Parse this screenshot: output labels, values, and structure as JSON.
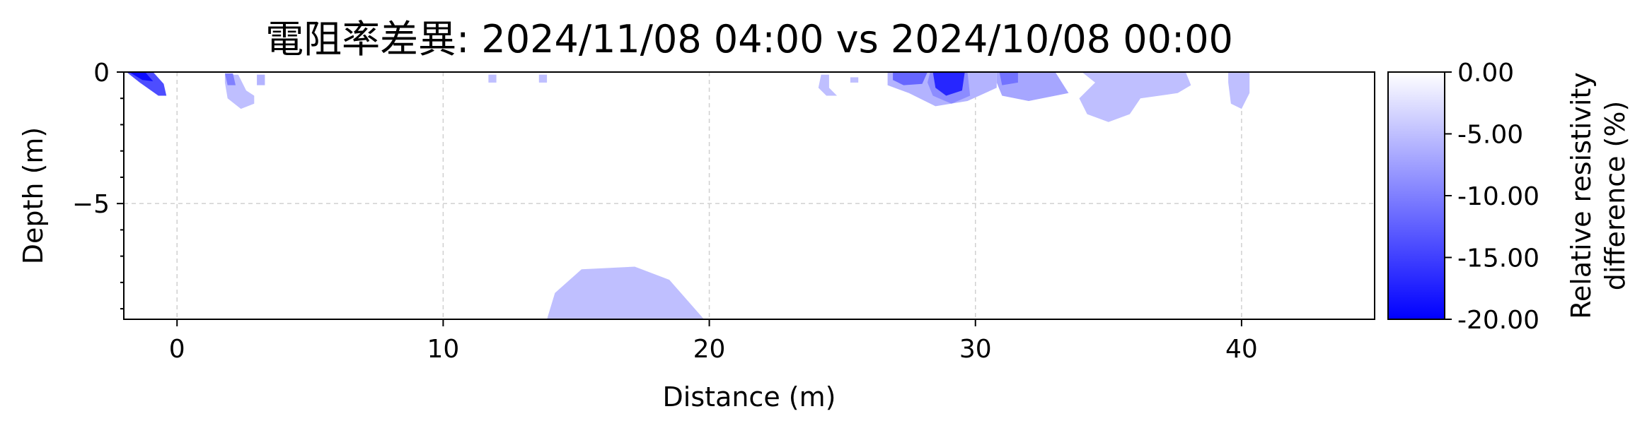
{
  "chart_data": {
    "type": "heatmap",
    "title": "電阻率差異: 2024/11/08 04:00 vs 2024/10/08 00:00",
    "xlabel": "Distance (m)",
    "ylabel": "Depth (m)",
    "xlim": [
      -2,
      45
    ],
    "ylim": [
      -9.4,
      0
    ],
    "x_ticks": [
      0,
      10,
      20,
      30,
      40
    ],
    "x_tick_labels": [
      "0",
      "10",
      "20",
      "30",
      "40"
    ],
    "y_ticks": [
      0,
      -5
    ],
    "y_tick_labels": [
      "0",
      "−5"
    ],
    "grid": true,
    "colorbar": {
      "label_lines": [
        "Relative resistivity",
        "difference (%)"
      ],
      "range": [
        -20,
        0
      ],
      "ticks": [
        0,
        -5,
        -10,
        -15,
        -20
      ],
      "tick_labels": [
        "0.00",
        "-5.00",
        "-10.00",
        "-15.00",
        "-20.00"
      ],
      "color_min": "#0000ff",
      "color_max": "#ffffff"
    },
    "anomalies": [
      {
        "value": -14,
        "polygon": [
          [
            -1.9,
            0
          ],
          [
            -0.9,
            0
          ],
          [
            -0.5,
            -0.45
          ],
          [
            -0.4,
            -0.9
          ],
          [
            -0.7,
            -0.9
          ],
          [
            -1.4,
            -0.4
          ]
        ]
      },
      {
        "value": -19,
        "polygon": [
          [
            -1.8,
            0
          ],
          [
            -1.2,
            0
          ],
          [
            -0.9,
            -0.35
          ],
          [
            -1.3,
            -0.3
          ]
        ]
      },
      {
        "value": -5,
        "polygon": [
          [
            1.8,
            -0.1
          ],
          [
            2.3,
            -0.1
          ],
          [
            2.6,
            -0.7
          ],
          [
            2.9,
            -0.9
          ],
          [
            2.9,
            -1.2
          ],
          [
            2.4,
            -1.4
          ],
          [
            1.9,
            -1.0
          ],
          [
            1.8,
            -0.4
          ]
        ]
      },
      {
        "value": -10,
        "polygon": [
          [
            1.8,
            -0.05
          ],
          [
            2.1,
            -0.05
          ],
          [
            2.2,
            -0.5
          ],
          [
            1.9,
            -0.5
          ]
        ]
      },
      {
        "value": -6,
        "polygon": [
          [
            3,
            -0.1
          ],
          [
            3.3,
            -0.1
          ],
          [
            3.3,
            -0.5
          ],
          [
            3,
            -0.5
          ]
        ]
      },
      {
        "value": -5,
        "polygon": [
          [
            11.7,
            -0.1
          ],
          [
            12.0,
            -0.1
          ],
          [
            12.0,
            -0.4
          ],
          [
            11.7,
            -0.4
          ]
        ]
      },
      {
        "value": -5,
        "polygon": [
          [
            13.6,
            -0.1
          ],
          [
            13.9,
            -0.1
          ],
          [
            13.9,
            -0.4
          ],
          [
            13.6,
            -0.4
          ]
        ]
      },
      {
        "value": -5,
        "polygon": [
          [
            13.9,
            -9.4
          ],
          [
            14.2,
            -8.4
          ],
          [
            15.2,
            -7.5
          ],
          [
            17.2,
            -7.4
          ],
          [
            18.5,
            -7.9
          ],
          [
            19.8,
            -9.4
          ]
        ]
      },
      {
        "value": -5,
        "polygon": [
          [
            24.2,
            -0.1
          ],
          [
            24.5,
            -0.1
          ],
          [
            24.5,
            -0.6
          ],
          [
            24.8,
            -0.9
          ],
          [
            24.4,
            -0.9
          ],
          [
            24.1,
            -0.6
          ]
        ]
      },
      {
        "value": -5,
        "polygon": [
          [
            25.3,
            -0.2
          ],
          [
            25.6,
            -0.2
          ],
          [
            25.6,
            -0.4
          ],
          [
            25.3,
            -0.4
          ]
        ]
      },
      {
        "value": -6,
        "polygon": [
          [
            26.7,
            0
          ],
          [
            30.8,
            0
          ],
          [
            30.8,
            -0.6
          ],
          [
            29.7,
            -1.1
          ],
          [
            28.5,
            -1.3
          ],
          [
            27.5,
            -0.8
          ],
          [
            26.7,
            -0.5
          ]
        ]
      },
      {
        "value": -12,
        "polygon": [
          [
            26.9,
            0
          ],
          [
            28.2,
            0
          ],
          [
            28.0,
            -0.45
          ],
          [
            27.3,
            -0.5
          ],
          [
            26.9,
            -0.3
          ]
        ]
      },
      {
        "value": -9,
        "polygon": [
          [
            28.3,
            0
          ],
          [
            29.7,
            0
          ],
          [
            29.8,
            -0.9
          ],
          [
            29.1,
            -1.2
          ],
          [
            28.4,
            -0.9
          ],
          [
            28.2,
            -0.4
          ]
        ]
      },
      {
        "value": -17,
        "polygon": [
          [
            28.4,
            0
          ],
          [
            29.6,
            0
          ],
          [
            29.5,
            -0.7
          ],
          [
            28.9,
            -0.9
          ],
          [
            28.5,
            -0.6
          ]
        ]
      },
      {
        "value": -7,
        "polygon": [
          [
            30.8,
            0
          ],
          [
            33.0,
            0
          ],
          [
            33.5,
            -0.8
          ],
          [
            32.0,
            -1.1
          ],
          [
            31.0,
            -0.9
          ],
          [
            30.8,
            -0.4
          ]
        ]
      },
      {
        "value": -11,
        "polygon": [
          [
            30.9,
            0
          ],
          [
            31.6,
            0
          ],
          [
            31.6,
            -0.4
          ],
          [
            31.0,
            -0.5
          ]
        ]
      },
      {
        "value": -5,
        "polygon": [
          [
            34.0,
            0
          ],
          [
            37.9,
            0
          ],
          [
            38.1,
            -0.5
          ],
          [
            37.6,
            -0.8
          ],
          [
            36.2,
            -1.0
          ],
          [
            35.8,
            -1.6
          ],
          [
            35.0,
            -1.9
          ],
          [
            34.2,
            -1.6
          ],
          [
            33.9,
            -1.0
          ],
          [
            34.5,
            -0.4
          ]
        ]
      },
      {
        "value": -5,
        "polygon": [
          [
            39.5,
            0
          ],
          [
            40.3,
            0
          ],
          [
            40.3,
            -0.8
          ],
          [
            40.0,
            -1.4
          ],
          [
            39.6,
            -1.2
          ],
          [
            39.5,
            -0.4
          ]
        ]
      }
    ]
  }
}
